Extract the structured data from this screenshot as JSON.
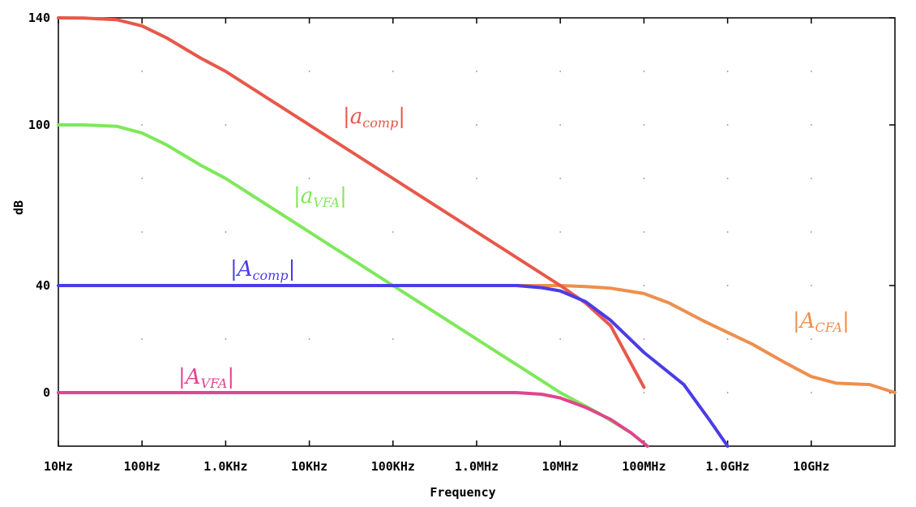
{
  "chart_data": {
    "type": "line",
    "xlabel": "Frequency",
    "ylabel": "dB",
    "xscale": "log",
    "xlim": [
      10,
      100000000000
    ],
    "ylim": [
      -20,
      140
    ],
    "x_ticks": [
      {
        "value": 10,
        "label": "10Hz"
      },
      {
        "value": 100,
        "label": "100Hz"
      },
      {
        "value": 1000,
        "label": "1.0KHz"
      },
      {
        "value": 10000,
        "label": "10KHz"
      },
      {
        "value": 100000,
        "label": "100KHz"
      },
      {
        "value": 1000000,
        "label": "1.0MHz"
      },
      {
        "value": 10000000,
        "label": "10MHz"
      },
      {
        "value": 100000000,
        "label": "100MHz"
      },
      {
        "value": 1000000000,
        "label": "1.0GHz"
      },
      {
        "value": 10000000000,
        "label": "10GHz"
      }
    ],
    "y_ticks": [
      {
        "value": 140,
        "label": "140"
      },
      {
        "value": 100,
        "label": "100"
      },
      {
        "value": 40,
        "label": "40"
      },
      {
        "value": 0,
        "label": "0"
      }
    ],
    "grid": "dotted",
    "series": [
      {
        "name": "|a_comp|",
        "label_main": "a",
        "label_sub": "comp",
        "color": "#e8584a",
        "x": [
          10,
          20,
          50,
          100,
          200,
          500,
          1000,
          10000,
          100000,
          1000000,
          3000000,
          10000000,
          20000000,
          40000000,
          100000000
        ],
        "y": [
          140,
          139.9,
          139.3,
          137,
          132.4,
          125,
          120,
          100,
          80,
          60,
          50.5,
          40,
          33.5,
          25,
          2
        ]
      },
      {
        "name": "|a_VFA|",
        "label_main": "a",
        "label_sub": "VFA",
        "color": "#7ee85a",
        "x": [
          10,
          20,
          50,
          100,
          200,
          500,
          1000,
          10000,
          100000,
          1000000,
          10000000,
          30000000,
          70000000,
          110000000
        ],
        "y": [
          100,
          100,
          99.5,
          97,
          92.4,
          85,
          80,
          60,
          40,
          20,
          0,
          -8,
          -15,
          -20
        ]
      },
      {
        "name": "|A_comp|",
        "label_main": "A",
        "label_sub": "comp",
        "color": "#4a3ce8",
        "x": [
          10,
          100000,
          1000000,
          3000000,
          6000000,
          10000000,
          20000000,
          40000000,
          100000000,
          300000000,
          600000000,
          1000000000
        ],
        "y": [
          40,
          40,
          40,
          40,
          39.2,
          38,
          34,
          27,
          15,
          3,
          -10,
          -20
        ]
      },
      {
        "name": "|A_CFA|",
        "label_main": "A",
        "label_sub": "CFA",
        "color": "#ee8f4e",
        "x": [
          3000000,
          10000000,
          20000000,
          40000000,
          100000000,
          200000000,
          500000000,
          1000000000,
          2000000000,
          5000000000,
          10000000000,
          20000000000,
          50000000000,
          100000000000
        ],
        "y": [
          40,
          40,
          39.6,
          39,
          37,
          33.5,
          27,
          22.5,
          18,
          11,
          6,
          3.5,
          3,
          0
        ]
      },
      {
        "name": "|A_VFA|",
        "label_main": "A",
        "label_sub": "VFA",
        "color": "#e0458f",
        "x": [
          10,
          100000,
          1000000,
          3000000,
          6000000,
          10000000,
          20000000,
          40000000,
          70000000,
          110000000
        ],
        "y": [
          0,
          0,
          0,
          0,
          -0.6,
          -2,
          -5.5,
          -10,
          -15,
          -20
        ]
      }
    ]
  }
}
